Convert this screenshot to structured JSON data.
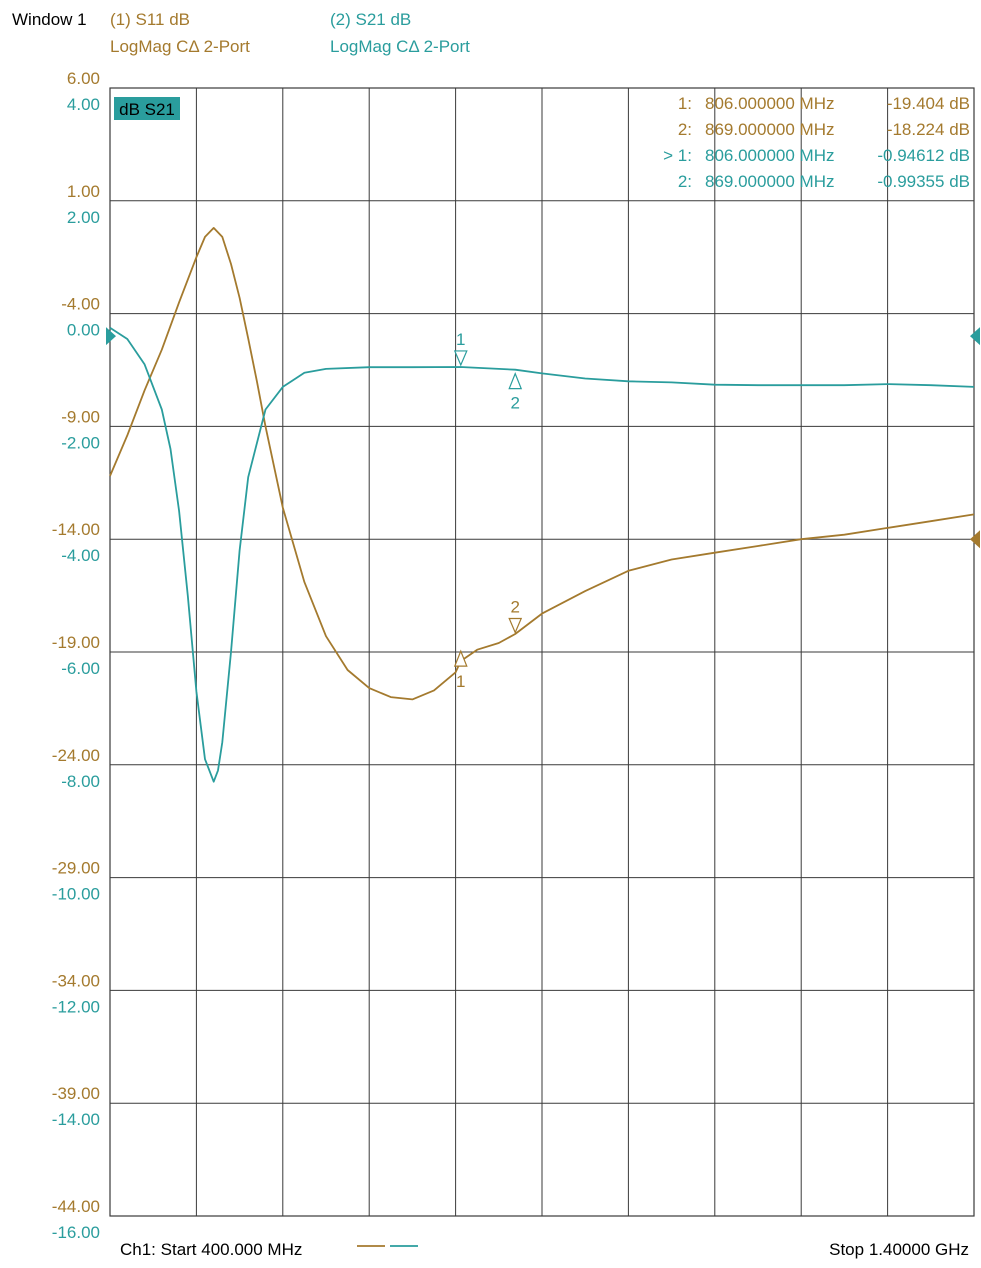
{
  "window": {
    "title": "Window 1"
  },
  "traces": [
    {
      "title": "(1) S11 dB",
      "format": "LogMag CΔ 2-Port",
      "color": "#a47a2e"
    },
    {
      "title": "(2) S21 dB",
      "format": "LogMag CΔ 2-Port",
      "color": "#2a9d9d"
    }
  ],
  "active_badge": "dB S21",
  "markers": [
    {
      "prefix": "1:",
      "freq": "806.000000 MHz",
      "value": "-19.404 dB",
      "trace": "S11"
    },
    {
      "prefix": "2:",
      "freq": "869.000000 MHz",
      "value": "-18.224 dB",
      "trace": "S11"
    },
    {
      "prefix": "> 1:",
      "freq": "806.000000 MHz",
      "value": "-0.94612 dB",
      "trace": "S21"
    },
    {
      "prefix": "2:",
      "freq": "869.000000 MHz",
      "value": "-0.99355 dB",
      "trace": "S21"
    }
  ],
  "footer": {
    "start": "Ch1: Start  400.000 MHz",
    "stop": "Stop  1.40000 GHz"
  },
  "chart_data": {
    "type": "line",
    "x_unit": "MHz",
    "xlim": [
      400,
      1400
    ],
    "grid": true,
    "y_scales": [
      {
        "trace": "S11",
        "ylim": [
          -44,
          6
        ],
        "ticks": [
          "6.00",
          "1.00",
          "-4.00",
          "-9.00",
          "-14.00",
          "-19.00",
          "-24.00",
          "-29.00",
          "-34.00",
          "-39.00",
          "-44.00"
        ]
      },
      {
        "trace": "S21",
        "ylim": [
          -16,
          4
        ],
        "ticks": [
          "4.00",
          "2.00",
          "0.00",
          "-2.00",
          "-4.00",
          "-6.00",
          "-8.00",
          "-10.00",
          "-12.00",
          "-14.00",
          "-16.00"
        ]
      }
    ],
    "series": [
      {
        "name": "S11",
        "color": "#a47a2e",
        "x": [
          400,
          420,
          440,
          460,
          480,
          500,
          510,
          520,
          530,
          540,
          550,
          560,
          570,
          580,
          600,
          625,
          650,
          675,
          700,
          725,
          750,
          775,
          800,
          806,
          825,
          850,
          869,
          900,
          950,
          1000,
          1050,
          1100,
          1150,
          1200,
          1250,
          1300,
          1350,
          1400
        ],
        "y": [
          -11.2,
          -9.4,
          -7.4,
          -5.6,
          -3.5,
          -1.5,
          -0.6,
          -0.2,
          -0.6,
          -1.8,
          -3.3,
          -5.1,
          -7.0,
          -9.0,
          -12.6,
          -15.9,
          -18.3,
          -19.8,
          -20.6,
          -21.0,
          -21.1,
          -20.7,
          -19.9,
          -19.4,
          -18.9,
          -18.6,
          -18.2,
          -17.3,
          -16.3,
          -15.4,
          -14.9,
          -14.6,
          -14.3,
          -14.0,
          -13.8,
          -13.5,
          -13.2,
          -12.9
        ]
      },
      {
        "name": "S21",
        "color": "#2a9d9d",
        "x": [
          400,
          420,
          440,
          460,
          470,
          480,
          490,
          500,
          510,
          520,
          525,
          530,
          540,
          550,
          560,
          580,
          600,
          625,
          650,
          700,
          750,
          806,
          869,
          900,
          950,
          1000,
          1050,
          1100,
          1150,
          1200,
          1250,
          1300,
          1350,
          1400
        ],
        "y": [
          -0.25,
          -0.45,
          -0.9,
          -1.7,
          -2.4,
          -3.5,
          -5.0,
          -6.7,
          -7.9,
          -8.3,
          -8.1,
          -7.6,
          -6.0,
          -4.2,
          -2.9,
          -1.7,
          -1.3,
          -1.05,
          -0.98,
          -0.95,
          -0.95,
          -0.946,
          -0.994,
          -1.06,
          -1.15,
          -1.2,
          -1.22,
          -1.26,
          -1.27,
          -1.27,
          -1.27,
          -1.25,
          -1.27,
          -1.3
        ]
      }
    ],
    "marker_points": [
      {
        "label": "1",
        "trace": "S11",
        "x": 806,
        "y": -19.404
      },
      {
        "label": "2",
        "trace": "S11",
        "x": 869,
        "y": -18.224
      },
      {
        "label": "1",
        "trace": "S21",
        "x": 806,
        "y": -0.94612
      },
      {
        "label": "2",
        "trace": "S21",
        "x": 869,
        "y": -0.99355
      }
    ]
  }
}
